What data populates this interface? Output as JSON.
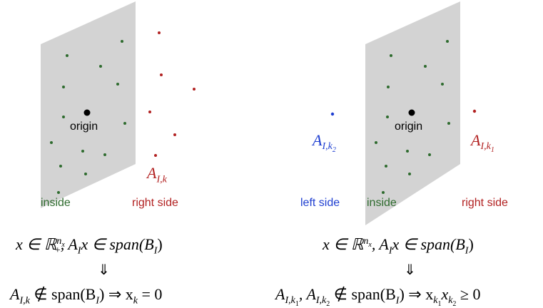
{
  "colors": {
    "plane": "#d3d3d3",
    "inside": "#2e6b2e",
    "right": "#b22222",
    "left": "#1f3fd1",
    "origin": "#000000"
  },
  "left_panel": {
    "origin_label": "origin",
    "vector_label": {
      "base": "A",
      "sub": "I,k"
    },
    "inside_label": "inside",
    "right_label": "right side",
    "formula_top": {
      "a": "x ∈ ℝ",
      "sup_base": "n",
      "sup_sub": "x",
      "sub": "+",
      "b": ", A",
      "b_sub": "I",
      "c": "x ∈ span(B",
      "c_sub": "I",
      "d": ")"
    },
    "implies": "⇓",
    "formula_bottom": {
      "a": "A",
      "a_sub": "I,k",
      "b": " ∉ span(B",
      "b_sub": "I",
      "c": ") ⇒ x",
      "c_sub": "k",
      "d": " = 0"
    }
  },
  "right_panel": {
    "origin_label": "origin",
    "vector_left_label": {
      "base": "A",
      "sub": "I,k",
      "subsub": "2"
    },
    "vector_right_label": {
      "base": "A",
      "sub": "I,k",
      "subsub": "1"
    },
    "left_label": "left side",
    "inside_label": "inside",
    "right_label": "right side",
    "formula_top": {
      "a": "x ∈ ℝ",
      "sup_base": "n",
      "sup_sub": "x",
      "b": ", A",
      "b_sub": "I",
      "c": "x ∈ span(B",
      "c_sub": "I",
      "d": ")"
    },
    "implies": "⇓",
    "formula_bottom": {
      "a": "A",
      "a_sub1": "I,k",
      "a_subsub1": "1",
      "a_mid": ", A",
      "a_sub2": "I,k",
      "a_subsub2": "2",
      "b": " ∉ span(B",
      "b_sub": "I",
      "c": ") ⇒ x",
      "c_sub1": "k",
      "c_subsub1": "1",
      "c_mid": "x",
      "c_sub2": "k",
      "c_subsub2": "2",
      "d": " ≥ 0"
    }
  }
}
